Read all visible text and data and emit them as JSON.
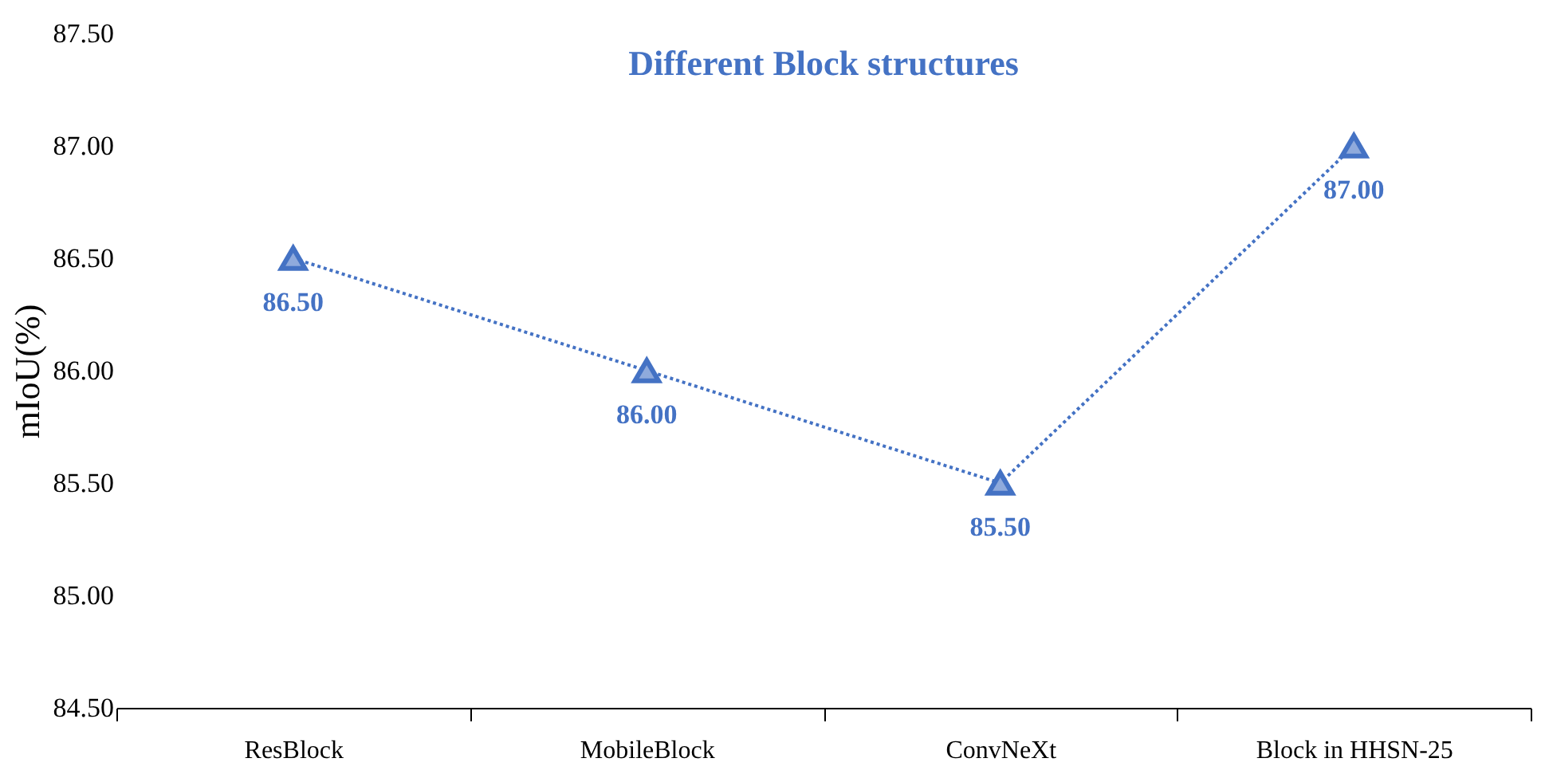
{
  "chart_data": {
    "type": "line",
    "title": "Different Block structures",
    "ylabel": "mIoU(%)",
    "categories": [
      "ResBlock",
      "MobileBlock",
      "ConvNeXt",
      "Block in HHSN-25"
    ],
    "series": [
      {
        "color": "#4472c4",
        "values": [
          86.5,
          86.0,
          85.5,
          87.0
        ]
      }
    ],
    "ylim": [
      84.5,
      87.5
    ],
    "yticks": [
      {
        "value": 84.5,
        "label": "84.50"
      },
      {
        "value": 85.0,
        "label": "85.00"
      },
      {
        "value": 85.5,
        "label": "85.50"
      },
      {
        "value": 86.0,
        "label": "86.00"
      },
      {
        "value": 86.5,
        "label": "86.50"
      },
      {
        "value": 87.0,
        "label": "87.00"
      },
      {
        "value": 87.5,
        "label": "87.50"
      }
    ],
    "value_labels": [
      "86.50",
      "86.00",
      "85.50",
      "87.00"
    ],
    "marker": "triangle",
    "line_style": "dotted",
    "grid": false
  }
}
